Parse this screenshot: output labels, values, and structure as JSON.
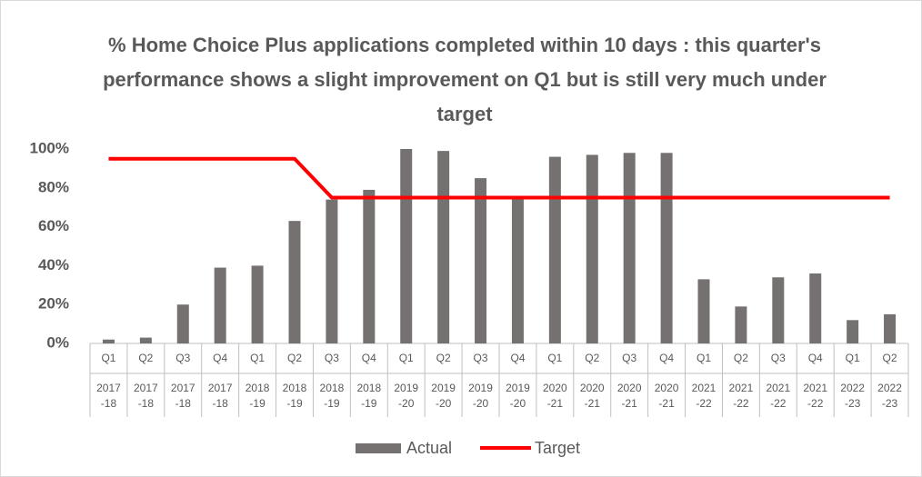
{
  "chart_data": {
    "type": "bar_line",
    "title": "% Home Choice Plus applications completed within 10 days : this quarter's performance shows a slight improvement on Q1 but is still very much under target",
    "categories": [
      "Q1",
      "Q2",
      "Q3",
      "Q4",
      "Q1",
      "Q2",
      "Q3",
      "Q4",
      "Q1",
      "Q2",
      "Q3",
      "Q4",
      "Q1",
      "Q2",
      "Q3",
      "Q4",
      "Q1",
      "Q2",
      "Q3",
      "Q4",
      "Q1",
      "Q2"
    ],
    "category_groups": [
      "2017-18",
      "2017-18",
      "2017-18",
      "2017-18",
      "2018-19",
      "2018-19",
      "2018-19",
      "2018-19",
      "2019-20",
      "2019-20",
      "2019-20",
      "2019-20",
      "2020-21",
      "2020-21",
      "2020-21",
      "2020-21",
      "2021-22",
      "2021-22",
      "2021-22",
      "2021-22",
      "2022-23",
      "2022-23"
    ],
    "series": [
      {
        "name": "Actual",
        "type": "bar",
        "color": "#767171",
        "values": [
          2,
          3,
          20,
          39,
          40,
          63,
          74,
          79,
          100,
          99,
          85,
          75,
          96,
          97,
          98,
          98,
          33,
          19,
          34,
          36,
          12,
          15
        ]
      },
      {
        "name": "Target",
        "type": "line",
        "color": "#ff0000",
        "values": [
          95,
          95,
          95,
          95,
          95,
          95,
          75,
          75,
          75,
          75,
          75,
          75,
          75,
          75,
          75,
          75,
          75,
          75,
          75,
          75,
          75,
          75
        ]
      }
    ],
    "ylim": [
      0,
      100
    ],
    "yticks": [
      {
        "value": 0,
        "label": "0%"
      },
      {
        "value": 20,
        "label": "20%"
      },
      {
        "value": 40,
        "label": "40%"
      },
      {
        "value": 60,
        "label": "60%"
      },
      {
        "value": 80,
        "label": "80%"
      },
      {
        "value": 100,
        "label": "100%"
      }
    ],
    "grid": false,
    "legend": "bottom"
  }
}
